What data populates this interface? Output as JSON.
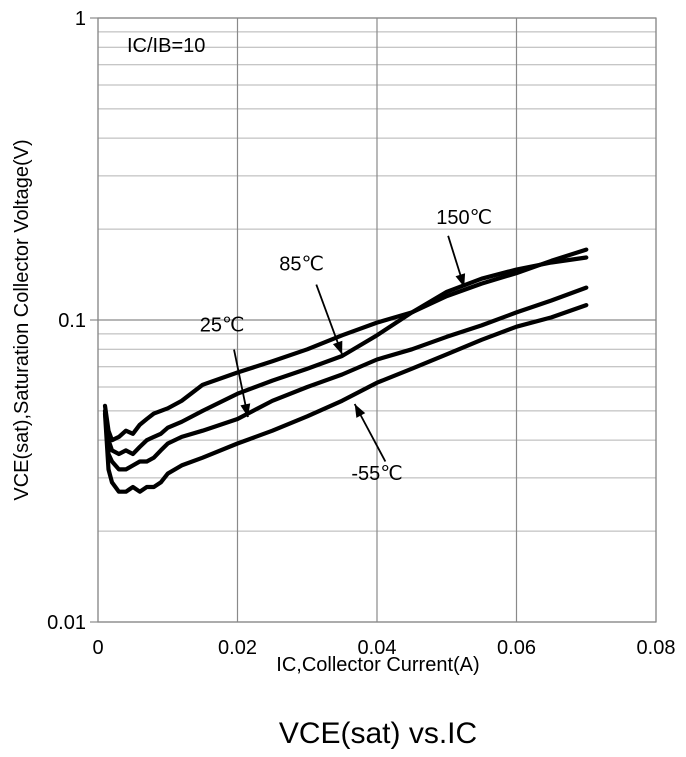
{
  "chart_data": {
    "type": "line",
    "title": "VCE(sat) vs.IC",
    "xlabel": "IC,Collector Current(A)",
    "ylabel": "VCE(sat),Saturation Collector Voltage(V)",
    "xlim": [
      0,
      0.08
    ],
    "ylim": [
      0.01,
      1
    ],
    "yscale": "log",
    "grid": true,
    "line_color": "#000000",
    "x_ticks": [
      "0",
      "0.02",
      "0.04",
      "0.06",
      "0.08"
    ],
    "y_ticks": [
      "0.01",
      "0.1",
      "1"
    ],
    "condition_label": "IC/IB=10",
    "series": [
      {
        "name": "150℃",
        "x": [
          0.001,
          0.0015,
          0.002,
          0.003,
          0.004,
          0.005,
          0.006,
          0.007,
          0.008,
          0.009,
          0.01,
          0.012,
          0.015,
          0.02,
          0.025,
          0.03,
          0.035,
          0.04,
          0.045,
          0.05,
          0.055,
          0.06,
          0.065,
          0.07
        ],
        "y": [
          0.052,
          0.043,
          0.04,
          0.041,
          0.043,
          0.042,
          0.045,
          0.047,
          0.049,
          0.05,
          0.051,
          0.054,
          0.061,
          0.067,
          0.073,
          0.08,
          0.089,
          0.098,
          0.106,
          0.12,
          0.132,
          0.143,
          0.157,
          0.171
        ]
      },
      {
        "name": "85℃",
        "x": [
          0.001,
          0.0015,
          0.002,
          0.003,
          0.004,
          0.005,
          0.006,
          0.007,
          0.008,
          0.009,
          0.01,
          0.012,
          0.015,
          0.02,
          0.025,
          0.03,
          0.035,
          0.04,
          0.045,
          0.05,
          0.055,
          0.06,
          0.065,
          0.07
        ],
        "y": [
          0.05,
          0.04,
          0.037,
          0.036,
          0.037,
          0.036,
          0.038,
          0.04,
          0.041,
          0.042,
          0.044,
          0.046,
          0.05,
          0.057,
          0.063,
          0.069,
          0.076,
          0.089,
          0.106,
          0.124,
          0.137,
          0.147,
          0.155,
          0.161
        ]
      },
      {
        "name": "25℃",
        "x": [
          0.001,
          0.0015,
          0.002,
          0.003,
          0.004,
          0.005,
          0.006,
          0.007,
          0.008,
          0.009,
          0.01,
          0.012,
          0.015,
          0.02,
          0.025,
          0.03,
          0.035,
          0.04,
          0.045,
          0.05,
          0.055,
          0.06,
          0.065,
          0.07
        ],
        "y": [
          0.05,
          0.036,
          0.034,
          0.032,
          0.032,
          0.033,
          0.034,
          0.034,
          0.035,
          0.037,
          0.039,
          0.041,
          0.043,
          0.047,
          0.054,
          0.06,
          0.066,
          0.074,
          0.08,
          0.088,
          0.096,
          0.106,
          0.116,
          0.128
        ]
      },
      {
        "name": "-55℃",
        "x": [
          0.001,
          0.0015,
          0.002,
          0.003,
          0.004,
          0.005,
          0.006,
          0.007,
          0.008,
          0.009,
          0.01,
          0.012,
          0.015,
          0.02,
          0.025,
          0.03,
          0.035,
          0.04,
          0.045,
          0.05,
          0.055,
          0.06,
          0.065,
          0.07
        ],
        "y": [
          0.049,
          0.032,
          0.029,
          0.027,
          0.027,
          0.028,
          0.027,
          0.028,
          0.028,
          0.029,
          0.031,
          0.033,
          0.035,
          0.039,
          0.043,
          0.048,
          0.054,
          0.062,
          0.069,
          0.077,
          0.086,
          0.095,
          0.102,
          0.112
        ]
      }
    ],
    "annotations": [
      {
        "text": "150℃",
        "label_xy": [
          0.0525,
          0.208
        ],
        "arrow_tail": [
          0.0502,
          0.19
        ],
        "arrow_head": [
          0.0525,
          0.1285
        ]
      },
      {
        "text": "85℃",
        "label_xy": [
          0.0292,
          0.146
        ],
        "arrow_tail": [
          0.0313,
          0.131
        ],
        "arrow_head": [
          0.035,
          0.0768
        ]
      },
      {
        "text": "25℃",
        "label_xy": [
          0.0178,
          0.0915
        ],
        "arrow_tail": [
          0.0195,
          0.0798
        ],
        "arrow_head": [
          0.0215,
          0.0477
        ]
      },
      {
        "text": "-55℃",
        "label_xy": [
          0.04,
          0.0295
        ],
        "arrow_tail": [
          0.0412,
          0.034
        ],
        "arrow_head": [
          0.0368,
          0.0527
        ]
      }
    ]
  }
}
